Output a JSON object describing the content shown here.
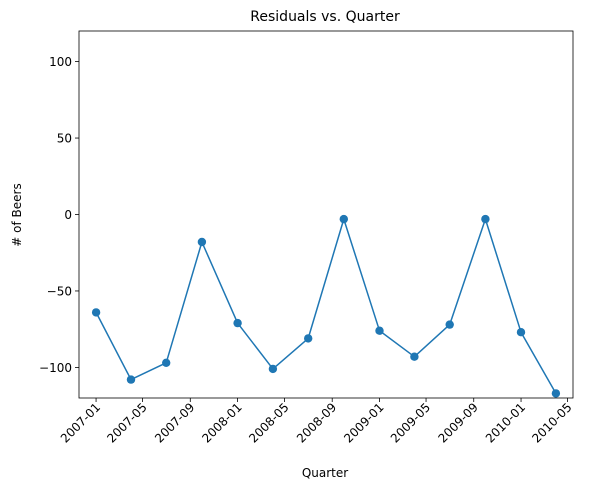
{
  "chart_data": {
    "type": "line",
    "title": "Residuals vs. Quarter",
    "xlabel": "Quarter",
    "ylabel": "# of Beers",
    "x_ticks": [
      "2007-01",
      "2007-05",
      "2007-09",
      "2008-01",
      "2008-05",
      "2008-09",
      "2009-01",
      "2009-05",
      "2009-09",
      "2010-01",
      "2010-05"
    ],
    "y_ticks": [
      "−100",
      "−50",
      "0",
      "50",
      "100"
    ],
    "y_tick_values": [
      -100,
      -50,
      0,
      50,
      100
    ],
    "xlim": [
      "2006-11-18",
      "2010-05-15"
    ],
    "ylim": [
      -120,
      120
    ],
    "grid": false,
    "series": [
      {
        "color": "#1f77b4",
        "marker": "circle",
        "x": [
          "2007-01-01",
          "2007-04-01",
          "2007-07-01",
          "2007-10-01",
          "2008-01-01",
          "2008-04-01",
          "2008-07-01",
          "2008-10-01",
          "2009-01-01",
          "2009-04-01",
          "2009-07-01",
          "2009-10-01",
          "2010-01-01",
          "2010-04-01"
        ],
        "values": [
          -64,
          -108,
          -97,
          -18,
          -71,
          -101,
          -81,
          -3,
          -76,
          -93,
          -72,
          -3,
          -77,
          -117
        ]
      }
    ]
  }
}
